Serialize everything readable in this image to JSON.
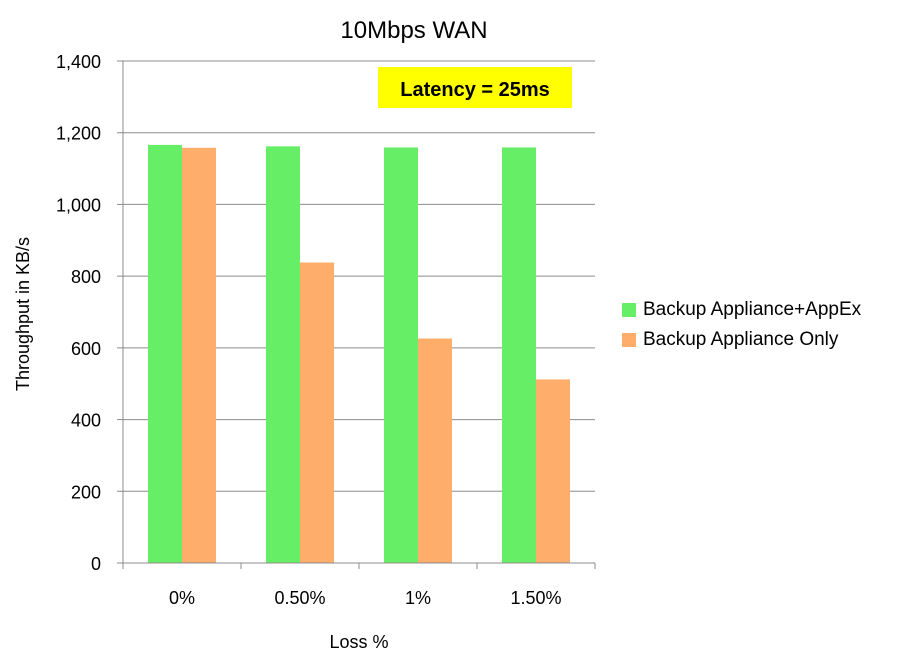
{
  "chart_data": {
    "type": "bar",
    "title": "10Mbps WAN",
    "xlabel": "Loss %",
    "ylabel": "Throughput in KB/s",
    "categories": [
      "0%",
      "0.50%",
      "1%",
      "1.50%"
    ],
    "series": [
      {
        "name": "Backup Appliance+AppEx",
        "values": [
          1166,
          1162,
          1159,
          1159
        ],
        "color": "#66ee66"
      },
      {
        "name": "Backup Appliance Only",
        "values": [
          1158,
          838,
          626,
          512
        ],
        "color": "#ffad6b"
      }
    ],
    "ylim": [
      0,
      1400
    ],
    "yticks": [
      0,
      200,
      400,
      600,
      800,
      1000,
      1200,
      1400
    ],
    "ytick_labels": [
      "0",
      "200",
      "400",
      "600",
      "800",
      "1,000",
      "1,200",
      "1,400"
    ],
    "grid": true,
    "legend_position": "right",
    "annotation": {
      "text": "Latency = 25ms",
      "background": "#ffff00"
    }
  }
}
